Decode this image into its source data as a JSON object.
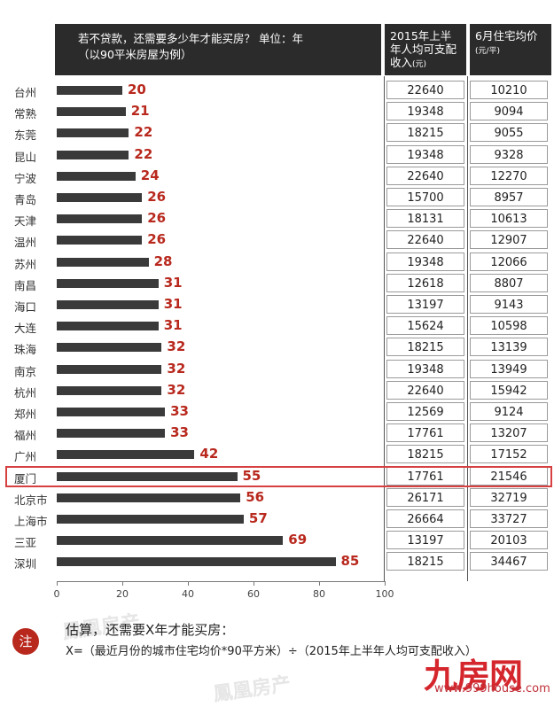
{
  "header": {
    "title_line1": "若不贷款，还需要多少年才能买房？  单位：年",
    "title_line2": "（以90平米房屋为例）",
    "col1_line1": "2015年上半",
    "col1_line2": "年人均可支配",
    "col1_line3": "收入",
    "col1_unit": "(元)",
    "col2_line1": "6月住宅均价",
    "col2_unit": "(元/平)"
  },
  "chart_data": {
    "type": "bar",
    "orientation": "horizontal",
    "categories": [
      "台州",
      "常熟",
      "东莞",
      "昆山",
      "宁波",
      "青岛",
      "天津",
      "温州",
      "苏州",
      "南昌",
      "海口",
      "大连",
      "珠海",
      "南京",
      "杭州",
      "郑州",
      "福州",
      "广州",
      "厦门",
      "北京市",
      "上海市",
      "三亚",
      "深圳"
    ],
    "values": [
      20,
      21,
      22,
      22,
      24,
      26,
      26,
      26,
      28,
      31,
      31,
      31,
      32,
      32,
      32,
      33,
      33,
      42,
      55,
      56,
      57,
      69,
      85
    ],
    "income": [
      "22640",
      "19348",
      "18215",
      "19348",
      "22640",
      "15700",
      "18131",
      "22640",
      "19348",
      "12618",
      "13197",
      "15624",
      "18215",
      "19348",
      "22640",
      "12569",
      "17761",
      "18215",
      "17761",
      "26171",
      "26664",
      "13197",
      "18215"
    ],
    "price": [
      "10210",
      "9094",
      "9055",
      "9328",
      "12270",
      "8957",
      "10613",
      "12907",
      "12066",
      "8807",
      "9143",
      "10598",
      "13139",
      "13949",
      "15942",
      "9124",
      "13207",
      "17152",
      "21546",
      "32719",
      "33727",
      "20103",
      "34467"
    ],
    "xlim": [
      0,
      100
    ],
    "xticks": [
      "0",
      "20",
      "40",
      "60",
      "80",
      "100"
    ],
    "highlight": "厦门",
    "bar_color": "#3a3a3a",
    "label_color": "#b8281d",
    "highlight_color": "#d64040"
  },
  "note": {
    "badge": "注",
    "line1": "估算，还需要X年才能买房：",
    "line2": "X=（最近月份的城市住宅均价*90平方米）÷（2015年上半年人均可支配收入）"
  },
  "watermark": {
    "logo": "九房网",
    "url": "www.999house.com"
  }
}
